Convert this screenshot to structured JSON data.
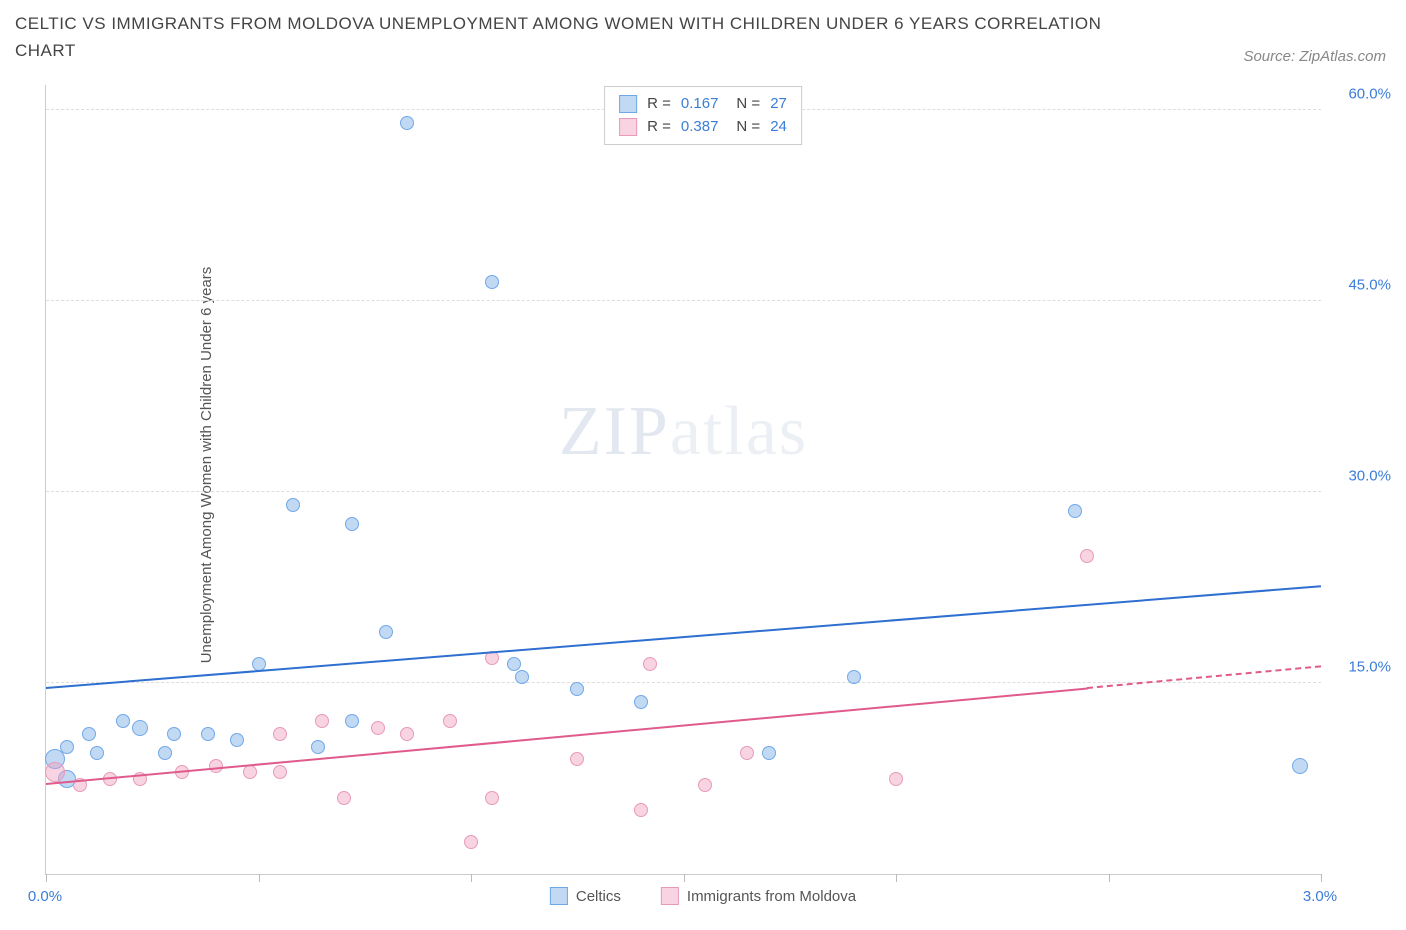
{
  "title": "CELTIC VS IMMIGRANTS FROM MOLDOVA UNEMPLOYMENT AMONG WOMEN WITH CHILDREN UNDER 6 YEARS CORRELATION CHART",
  "source": "Source: ZipAtlas.com",
  "y_axis_label": "Unemployment Among Women with Children Under 6 years",
  "watermark": {
    "bold": "ZIP",
    "thin": "atlas"
  },
  "chart": {
    "type": "scatter",
    "xlim": [
      0.0,
      3.0
    ],
    "ylim": [
      0.0,
      62.0
    ],
    "x_ticks": [
      0.0,
      0.5,
      1.0,
      1.5,
      2.0,
      2.5,
      3.0
    ],
    "x_tick_labels": {
      "0.0": "0.0%",
      "3.0": "3.0%"
    },
    "y_ticks": [
      15.0,
      30.0,
      45.0,
      60.0
    ],
    "y_tick_labels": [
      "15.0%",
      "30.0%",
      "45.0%",
      "60.0%"
    ],
    "grid_color": "#dddddd",
    "background_color": "#ffffff",
    "axis_color": "#cccccc",
    "tick_label_color": "#3b7dd8",
    "label_color": "#555555",
    "title_color": "#444444",
    "title_fontsize": 17,
    "label_fontsize": 15
  },
  "series": [
    {
      "name": "Celtics",
      "fill": "rgba(120,170,230,0.45)",
      "stroke": "#6fa8e8",
      "trend_color": "#2e6fd0",
      "R": "0.167",
      "N": "27",
      "trend": {
        "x1": 0.0,
        "y1": 14.5,
        "x2": 3.0,
        "y2": 22.5
      },
      "points": [
        {
          "x": 0.02,
          "y": 9.0,
          "r": 10
        },
        {
          "x": 0.05,
          "y": 7.5,
          "r": 9
        },
        {
          "x": 0.05,
          "y": 10.0,
          "r": 7
        },
        {
          "x": 0.1,
          "y": 11.0,
          "r": 7
        },
        {
          "x": 0.12,
          "y": 9.5,
          "r": 7
        },
        {
          "x": 0.18,
          "y": 12.0,
          "r": 7
        },
        {
          "x": 0.22,
          "y": 11.5,
          "r": 8
        },
        {
          "x": 0.28,
          "y": 9.5,
          "r": 7
        },
        {
          "x": 0.3,
          "y": 11.0,
          "r": 7
        },
        {
          "x": 0.38,
          "y": 11.0,
          "r": 7
        },
        {
          "x": 0.45,
          "y": 10.5,
          "r": 7
        },
        {
          "x": 0.5,
          "y": 16.5,
          "r": 7
        },
        {
          "x": 0.58,
          "y": 29.0,
          "r": 7
        },
        {
          "x": 0.64,
          "y": 10.0,
          "r": 7
        },
        {
          "x": 0.72,
          "y": 27.5,
          "r": 7
        },
        {
          "x": 0.72,
          "y": 12.0,
          "r": 7
        },
        {
          "x": 0.8,
          "y": 19.0,
          "r": 7
        },
        {
          "x": 0.85,
          "y": 59.0,
          "r": 7
        },
        {
          "x": 1.05,
          "y": 46.5,
          "r": 7
        },
        {
          "x": 1.1,
          "y": 16.5,
          "r": 7
        },
        {
          "x": 1.12,
          "y": 15.5,
          "r": 7
        },
        {
          "x": 1.25,
          "y": 14.5,
          "r": 7
        },
        {
          "x": 1.4,
          "y": 13.5,
          "r": 7
        },
        {
          "x": 1.7,
          "y": 9.5,
          "r": 7
        },
        {
          "x": 1.9,
          "y": 15.5,
          "r": 7
        },
        {
          "x": 2.42,
          "y": 28.5,
          "r": 7
        },
        {
          "x": 2.95,
          "y": 8.5,
          "r": 8
        }
      ]
    },
    {
      "name": "Immigrants from Moldova",
      "fill": "rgba(240,160,190,0.45)",
      "stroke": "#e89ab8",
      "trend_color": "#e05a8c",
      "R": "0.387",
      "N": "24",
      "trend": {
        "x1": 0.0,
        "y1": 7.0,
        "x2": 2.45,
        "y2": 14.5
      },
      "trend_ext": {
        "x1": 2.45,
        "y1": 14.5,
        "x2": 3.0,
        "y2": 16.2
      },
      "points": [
        {
          "x": 0.02,
          "y": 8.0,
          "r": 10
        },
        {
          "x": 0.08,
          "y": 7.0,
          "r": 7
        },
        {
          "x": 0.15,
          "y": 7.5,
          "r": 7
        },
        {
          "x": 0.22,
          "y": 7.5,
          "r": 7
        },
        {
          "x": 0.32,
          "y": 8.0,
          "r": 7
        },
        {
          "x": 0.4,
          "y": 8.5,
          "r": 7
        },
        {
          "x": 0.48,
          "y": 8.0,
          "r": 7
        },
        {
          "x": 0.55,
          "y": 11.0,
          "r": 7
        },
        {
          "x": 0.55,
          "y": 8.0,
          "r": 7
        },
        {
          "x": 0.65,
          "y": 12.0,
          "r": 7
        },
        {
          "x": 0.7,
          "y": 6.0,
          "r": 7
        },
        {
          "x": 0.78,
          "y": 11.5,
          "r": 7
        },
        {
          "x": 0.85,
          "y": 11.0,
          "r": 7
        },
        {
          "x": 0.95,
          "y": 12.0,
          "r": 7
        },
        {
          "x": 1.0,
          "y": 2.5,
          "r": 7
        },
        {
          "x": 1.05,
          "y": 17.0,
          "r": 7
        },
        {
          "x": 1.05,
          "y": 6.0,
          "r": 7
        },
        {
          "x": 1.25,
          "y": 9.0,
          "r": 7
        },
        {
          "x": 1.4,
          "y": 5.0,
          "r": 7
        },
        {
          "x": 1.42,
          "y": 16.5,
          "r": 7
        },
        {
          "x": 1.55,
          "y": 7.0,
          "r": 7
        },
        {
          "x": 1.65,
          "y": 9.5,
          "r": 7
        },
        {
          "x": 2.0,
          "y": 7.5,
          "r": 7
        },
        {
          "x": 2.45,
          "y": 25.0,
          "r": 7
        }
      ]
    }
  ],
  "legend": {
    "r_label": "R =",
    "n_label": "N ="
  },
  "bottom_legend": {
    "series1": "Celtics",
    "series2": "Immigrants from Moldova"
  }
}
